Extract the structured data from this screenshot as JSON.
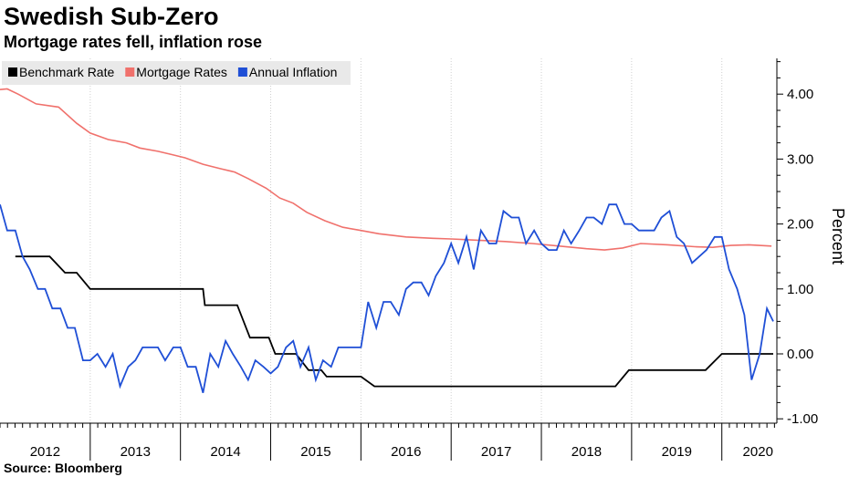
{
  "title": "Swedish Sub-Zero",
  "subtitle": "Mortgage rates fell, inflation rose",
  "source": "Source: Bloomberg",
  "chart_data": {
    "type": "line",
    "ylabel": "Percent",
    "ylim": [
      -1.1,
      4.5
    ],
    "xlim": [
      2012.0,
      2020.61
    ],
    "grid": "vertical dotted at year boundaries",
    "legend_position": "top-left",
    "y_ticks": [
      {
        "value": 4.0,
        "label": "4.00"
      },
      {
        "value": 3.0,
        "label": "3.00"
      },
      {
        "value": 2.0,
        "label": "2.00"
      },
      {
        "value": 1.0,
        "label": "1.00"
      },
      {
        "value": 0.0,
        "label": "0.00"
      },
      {
        "value": -1.0,
        "label": "-1.00"
      }
    ],
    "x_ticks": [
      {
        "value": 2012.5,
        "label": "2012"
      },
      {
        "value": 2013.5,
        "label": "2013"
      },
      {
        "value": 2014.5,
        "label": "2014"
      },
      {
        "value": 2015.5,
        "label": "2015"
      },
      {
        "value": 2016.5,
        "label": "2016"
      },
      {
        "value": 2017.5,
        "label": "2017"
      },
      {
        "value": 2018.5,
        "label": "2018"
      },
      {
        "value": 2019.5,
        "label": "2019"
      },
      {
        "value": 2020.4,
        "label": "2020"
      }
    ],
    "series": [
      {
        "name": "Benchmark Rate",
        "color": "#000000",
        "step": true,
        "points": [
          [
            2012.17,
            1.5
          ],
          [
            2012.55,
            1.5
          ],
          [
            2012.72,
            1.25
          ],
          [
            2012.85,
            1.25
          ],
          [
            2013.0,
            1.0
          ],
          [
            2013.83,
            1.0
          ],
          [
            2014.25,
            1.0
          ],
          [
            2014.27,
            0.75
          ],
          [
            2014.63,
            0.75
          ],
          [
            2014.77,
            0.25
          ],
          [
            2014.98,
            0.25
          ],
          [
            2015.05,
            0.0
          ],
          [
            2015.28,
            0.0
          ],
          [
            2015.42,
            -0.25
          ],
          [
            2015.56,
            -0.25
          ],
          [
            2015.62,
            -0.35
          ],
          [
            2016.0,
            -0.35
          ],
          [
            2016.15,
            -0.5
          ],
          [
            2018.82,
            -0.5
          ],
          [
            2018.97,
            -0.25
          ],
          [
            2019.82,
            -0.25
          ],
          [
            2020.0,
            0.0
          ],
          [
            2020.57,
            0.0
          ]
        ]
      },
      {
        "name": "Mortgage Rates",
        "color": "#f0716c",
        "step": false,
        "points": [
          [
            2012.0,
            4.07
          ],
          [
            2012.08,
            4.08
          ],
          [
            2012.2,
            4.0
          ],
          [
            2012.4,
            3.85
          ],
          [
            2012.65,
            3.8
          ],
          [
            2012.85,
            3.55
          ],
          [
            2013.0,
            3.4
          ],
          [
            2013.2,
            3.3
          ],
          [
            2013.4,
            3.25
          ],
          [
            2013.55,
            3.17
          ],
          [
            2013.75,
            3.12
          ],
          [
            2013.9,
            3.07
          ],
          [
            2014.05,
            3.02
          ],
          [
            2014.25,
            2.92
          ],
          [
            2014.45,
            2.85
          ],
          [
            2014.6,
            2.8
          ],
          [
            2014.75,
            2.7
          ],
          [
            2014.95,
            2.55
          ],
          [
            2015.1,
            2.4
          ],
          [
            2015.25,
            2.32
          ],
          [
            2015.4,
            2.18
          ],
          [
            2015.6,
            2.05
          ],
          [
            2015.8,
            1.95
          ],
          [
            2016.0,
            1.9
          ],
          [
            2016.2,
            1.85
          ],
          [
            2016.5,
            1.8
          ],
          [
            2016.8,
            1.78
          ],
          [
            2017.0,
            1.77
          ],
          [
            2017.3,
            1.75
          ],
          [
            2017.6,
            1.73
          ],
          [
            2017.9,
            1.7
          ],
          [
            2018.2,
            1.66
          ],
          [
            2018.5,
            1.62
          ],
          [
            2018.7,
            1.6
          ],
          [
            2018.9,
            1.63
          ],
          [
            2019.1,
            1.7
          ],
          [
            2019.4,
            1.68
          ],
          [
            2019.7,
            1.65
          ],
          [
            2019.9,
            1.64
          ],
          [
            2020.1,
            1.67
          ],
          [
            2020.3,
            1.68
          ],
          [
            2020.55,
            1.66
          ]
        ]
      },
      {
        "name": "Annual Inflation",
        "color": "#1f4fd6",
        "step": false,
        "points": [
          [
            2012.0,
            2.3
          ],
          [
            2012.08,
            1.9
          ],
          [
            2012.17,
            1.9
          ],
          [
            2012.25,
            1.5
          ],
          [
            2012.33,
            1.3
          ],
          [
            2012.42,
            1.0
          ],
          [
            2012.5,
            1.0
          ],
          [
            2012.58,
            0.7
          ],
          [
            2012.67,
            0.7
          ],
          [
            2012.75,
            0.4
          ],
          [
            2012.83,
            0.4
          ],
          [
            2012.92,
            -0.1
          ],
          [
            2013.0,
            -0.1
          ],
          [
            2013.08,
            0.0
          ],
          [
            2013.17,
            -0.2
          ],
          [
            2013.25,
            0.0
          ],
          [
            2013.33,
            -0.5
          ],
          [
            2013.42,
            -0.2
          ],
          [
            2013.5,
            -0.1
          ],
          [
            2013.58,
            0.1
          ],
          [
            2013.67,
            0.1
          ],
          [
            2013.75,
            0.1
          ],
          [
            2013.83,
            -0.1
          ],
          [
            2013.92,
            0.1
          ],
          [
            2014.0,
            0.1
          ],
          [
            2014.08,
            -0.2
          ],
          [
            2014.17,
            -0.2
          ],
          [
            2014.25,
            -0.6
          ],
          [
            2014.33,
            0.0
          ],
          [
            2014.42,
            -0.2
          ],
          [
            2014.5,
            0.2
          ],
          [
            2014.58,
            0.0
          ],
          [
            2014.67,
            -0.2
          ],
          [
            2014.75,
            -0.4
          ],
          [
            2014.83,
            -0.1
          ],
          [
            2014.92,
            -0.2
          ],
          [
            2015.0,
            -0.3
          ],
          [
            2015.08,
            -0.2
          ],
          [
            2015.17,
            0.1
          ],
          [
            2015.25,
            0.2
          ],
          [
            2015.33,
            -0.2
          ],
          [
            2015.42,
            0.1
          ],
          [
            2015.5,
            -0.4
          ],
          [
            2015.58,
            -0.1
          ],
          [
            2015.67,
            -0.2
          ],
          [
            2015.75,
            0.1
          ],
          [
            2015.83,
            0.1
          ],
          [
            2015.92,
            0.1
          ],
          [
            2016.0,
            0.1
          ],
          [
            2016.08,
            0.8
          ],
          [
            2016.17,
            0.4
          ],
          [
            2016.25,
            0.8
          ],
          [
            2016.33,
            0.8
          ],
          [
            2016.42,
            0.6
          ],
          [
            2016.5,
            1.0
          ],
          [
            2016.58,
            1.1
          ],
          [
            2016.67,
            1.1
          ],
          [
            2016.75,
            0.9
          ],
          [
            2016.83,
            1.2
          ],
          [
            2016.92,
            1.4
          ],
          [
            2017.0,
            1.7
          ],
          [
            2017.08,
            1.4
          ],
          [
            2017.17,
            1.8
          ],
          [
            2017.25,
            1.3
          ],
          [
            2017.33,
            1.9
          ],
          [
            2017.42,
            1.7
          ],
          [
            2017.5,
            1.7
          ],
          [
            2017.58,
            2.2
          ],
          [
            2017.67,
            2.1
          ],
          [
            2017.75,
            2.1
          ],
          [
            2017.83,
            1.7
          ],
          [
            2017.92,
            1.9
          ],
          [
            2018.0,
            1.7
          ],
          [
            2018.08,
            1.6
          ],
          [
            2018.17,
            1.6
          ],
          [
            2018.25,
            1.9
          ],
          [
            2018.33,
            1.7
          ],
          [
            2018.42,
            1.9
          ],
          [
            2018.5,
            2.1
          ],
          [
            2018.58,
            2.1
          ],
          [
            2018.67,
            2.0
          ],
          [
            2018.75,
            2.3
          ],
          [
            2018.83,
            2.3
          ],
          [
            2018.92,
            2.0
          ],
          [
            2019.0,
            2.0
          ],
          [
            2019.08,
            1.9
          ],
          [
            2019.17,
            1.9
          ],
          [
            2019.25,
            1.9
          ],
          [
            2019.33,
            2.1
          ],
          [
            2019.42,
            2.2
          ],
          [
            2019.5,
            1.8
          ],
          [
            2019.58,
            1.7
          ],
          [
            2019.67,
            1.4
          ],
          [
            2019.75,
            1.5
          ],
          [
            2019.83,
            1.6
          ],
          [
            2019.92,
            1.8
          ],
          [
            2020.0,
            1.8
          ],
          [
            2020.08,
            1.3
          ],
          [
            2020.17,
            1.0
          ],
          [
            2020.25,
            0.6
          ],
          [
            2020.33,
            -0.4
          ],
          [
            2020.42,
            0.0
          ],
          [
            2020.5,
            0.7
          ],
          [
            2020.57,
            0.5
          ]
        ]
      }
    ]
  }
}
